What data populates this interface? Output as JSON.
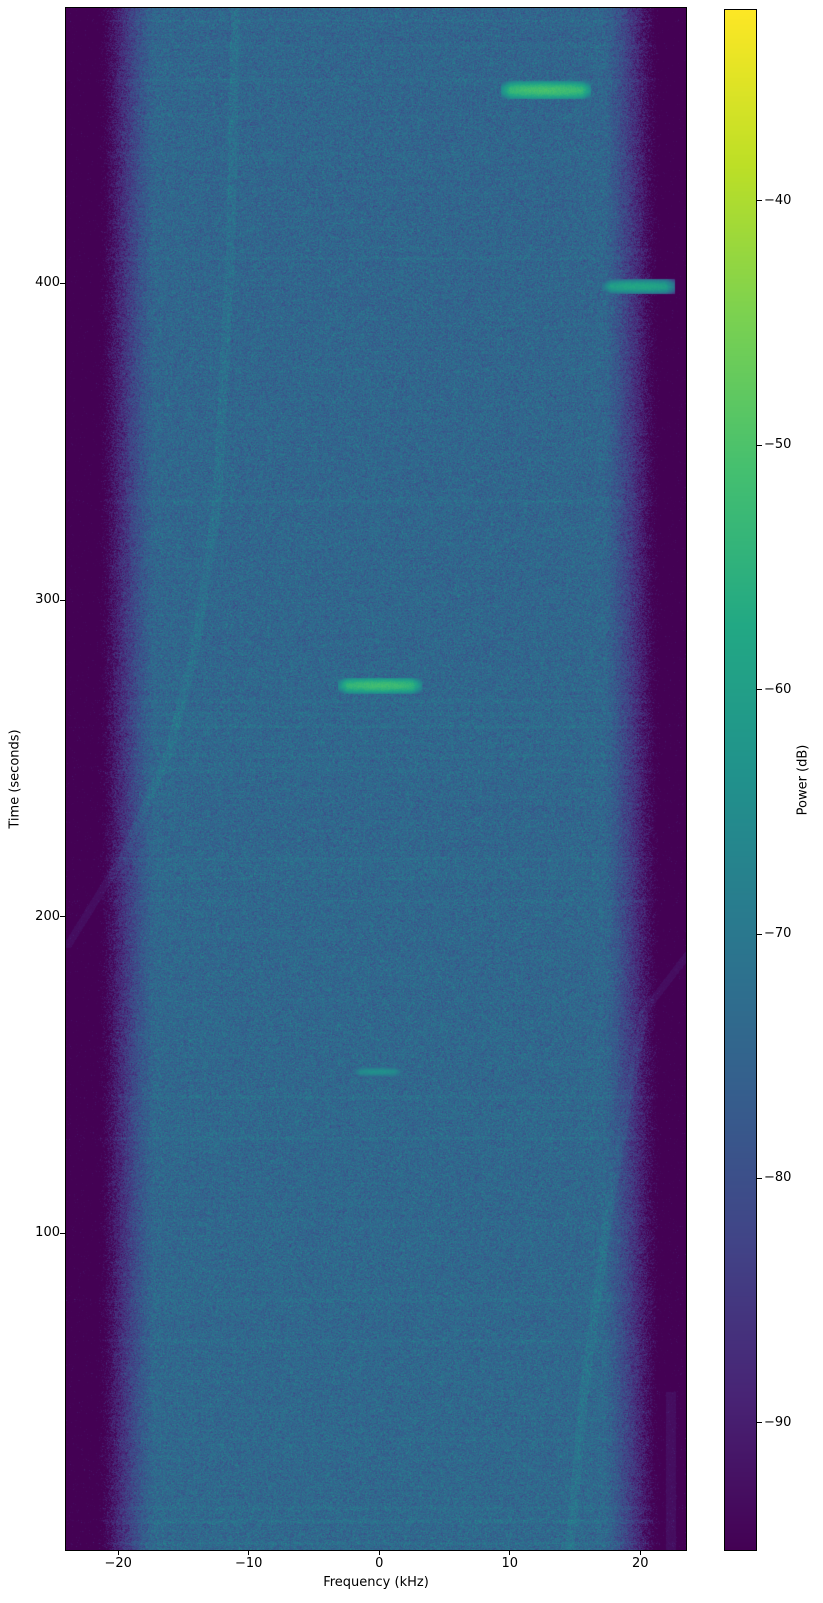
{
  "chart_data": {
    "type": "heatmap",
    "subtype": "spectrogram",
    "title": "",
    "xlabel": "Frequency (kHz)",
    "ylabel": "Time (seconds)",
    "colorbar_label": "Power (dB)",
    "x_range_khz": [
      -24,
      23.5
    ],
    "y_range_seconds": [
      0,
      487
    ],
    "power_range_db": [
      -95.2,
      -32.2
    ],
    "grid": false,
    "legend": "none",
    "colormap": "viridis",
    "x_ticks": [
      {
        "v": -20,
        "label": "−20"
      },
      {
        "v": -10,
        "label": "−10"
      },
      {
        "v": 0,
        "label": "0"
      },
      {
        "v": 10,
        "label": "10"
      },
      {
        "v": 20,
        "label": "20"
      }
    ],
    "y_ticks": [
      {
        "v": 100,
        "label": "100"
      },
      {
        "v": 200,
        "label": "200"
      },
      {
        "v": 300,
        "label": "300"
      },
      {
        "v": 400,
        "label": "400"
      }
    ],
    "colorbar_ticks": [
      {
        "v": -40,
        "label": "−40"
      },
      {
        "v": -50,
        "label": "−50"
      },
      {
        "v": -60,
        "label": "−60"
      },
      {
        "v": -70,
        "label": "−70"
      },
      {
        "v": -80,
        "label": "−80"
      },
      {
        "v": -90,
        "label": "−90"
      }
    ],
    "noise_floor_db": -74.5,
    "noise_sigma_db": 3.0,
    "band_edge_khz": 17.2,
    "band_edge_full_khz": 21.6,
    "edge_attenuation_db": 26,
    "viridis_stops": [
      [
        0.0,
        "#440154"
      ],
      [
        0.1,
        "#482475"
      ],
      [
        0.2,
        "#414487"
      ],
      [
        0.3,
        "#355f8d"
      ],
      [
        0.4,
        "#2a788e"
      ],
      [
        0.5,
        "#21918c"
      ],
      [
        0.6,
        "#22a884"
      ],
      [
        0.7,
        "#44bf70"
      ],
      [
        0.8,
        "#7ad151"
      ],
      [
        0.9,
        "#bddf26"
      ],
      [
        1.0,
        "#fde725"
      ]
    ],
    "features": [
      {
        "time_s": 461,
        "f_start_khz": 9.7,
        "f_end_khz": 15.9,
        "peak_db": -51,
        "sigma_s": 1.1
      },
      {
        "time_s": 399,
        "f_start_khz": 17.4,
        "f_end_khz": 22.3,
        "peak_db": -58,
        "sigma_s": 0.9
      },
      {
        "time_s": 273,
        "f_start_khz": -2.8,
        "f_end_khz": 2.9,
        "peak_db": -52,
        "sigma_s": 1.0
      },
      {
        "time_s": 151,
        "f_start_khz": -1.8,
        "f_end_khz": 1.6,
        "peak_db": -64,
        "sigma_s": 0.7
      }
    ],
    "horizontal_lines": [
      [
        483,
        1.5
      ],
      [
        475,
        1.2
      ],
      [
        464,
        1.8
      ],
      [
        408,
        1.5
      ],
      [
        331,
        1.8
      ],
      [
        268,
        1.5
      ],
      [
        264,
        1.2
      ],
      [
        260,
        1.8
      ],
      [
        255,
        1.4
      ],
      [
        251,
        1.6
      ],
      [
        246,
        1.3
      ],
      [
        218,
        1.6
      ],
      [
        212,
        1.4
      ],
      [
        205,
        1.7
      ],
      [
        143,
        1.6
      ],
      [
        130,
        1.9
      ],
      [
        79,
        1.5
      ],
      [
        66,
        1.3
      ],
      [
        35,
        1.4
      ],
      [
        13,
        1.6
      ],
      [
        9,
        1.8
      ],
      [
        2,
        2.2
      ]
    ],
    "drift_lines": [
      {
        "points": [
          [
            487,
            -11.0
          ],
          [
            411,
            -11.4
          ],
          [
            332,
            -12.4
          ],
          [
            287,
            -14.0
          ],
          [
            253,
            -16.0
          ],
          [
            220,
            -19.5
          ],
          [
            190,
            -24.0
          ]
        ],
        "boost_db": 2.2
      },
      {
        "points": [
          [
            190,
            24.0
          ],
          [
            170,
            20.3
          ],
          [
            111,
            17.7
          ],
          [
            47,
            15.6
          ],
          [
            0,
            14.6
          ]
        ],
        "boost_db": 2.2
      },
      {
        "points": [
          [
            50,
            22.35
          ],
          [
            0,
            22.35
          ]
        ],
        "boost_db": 3.0
      }
    ]
  }
}
